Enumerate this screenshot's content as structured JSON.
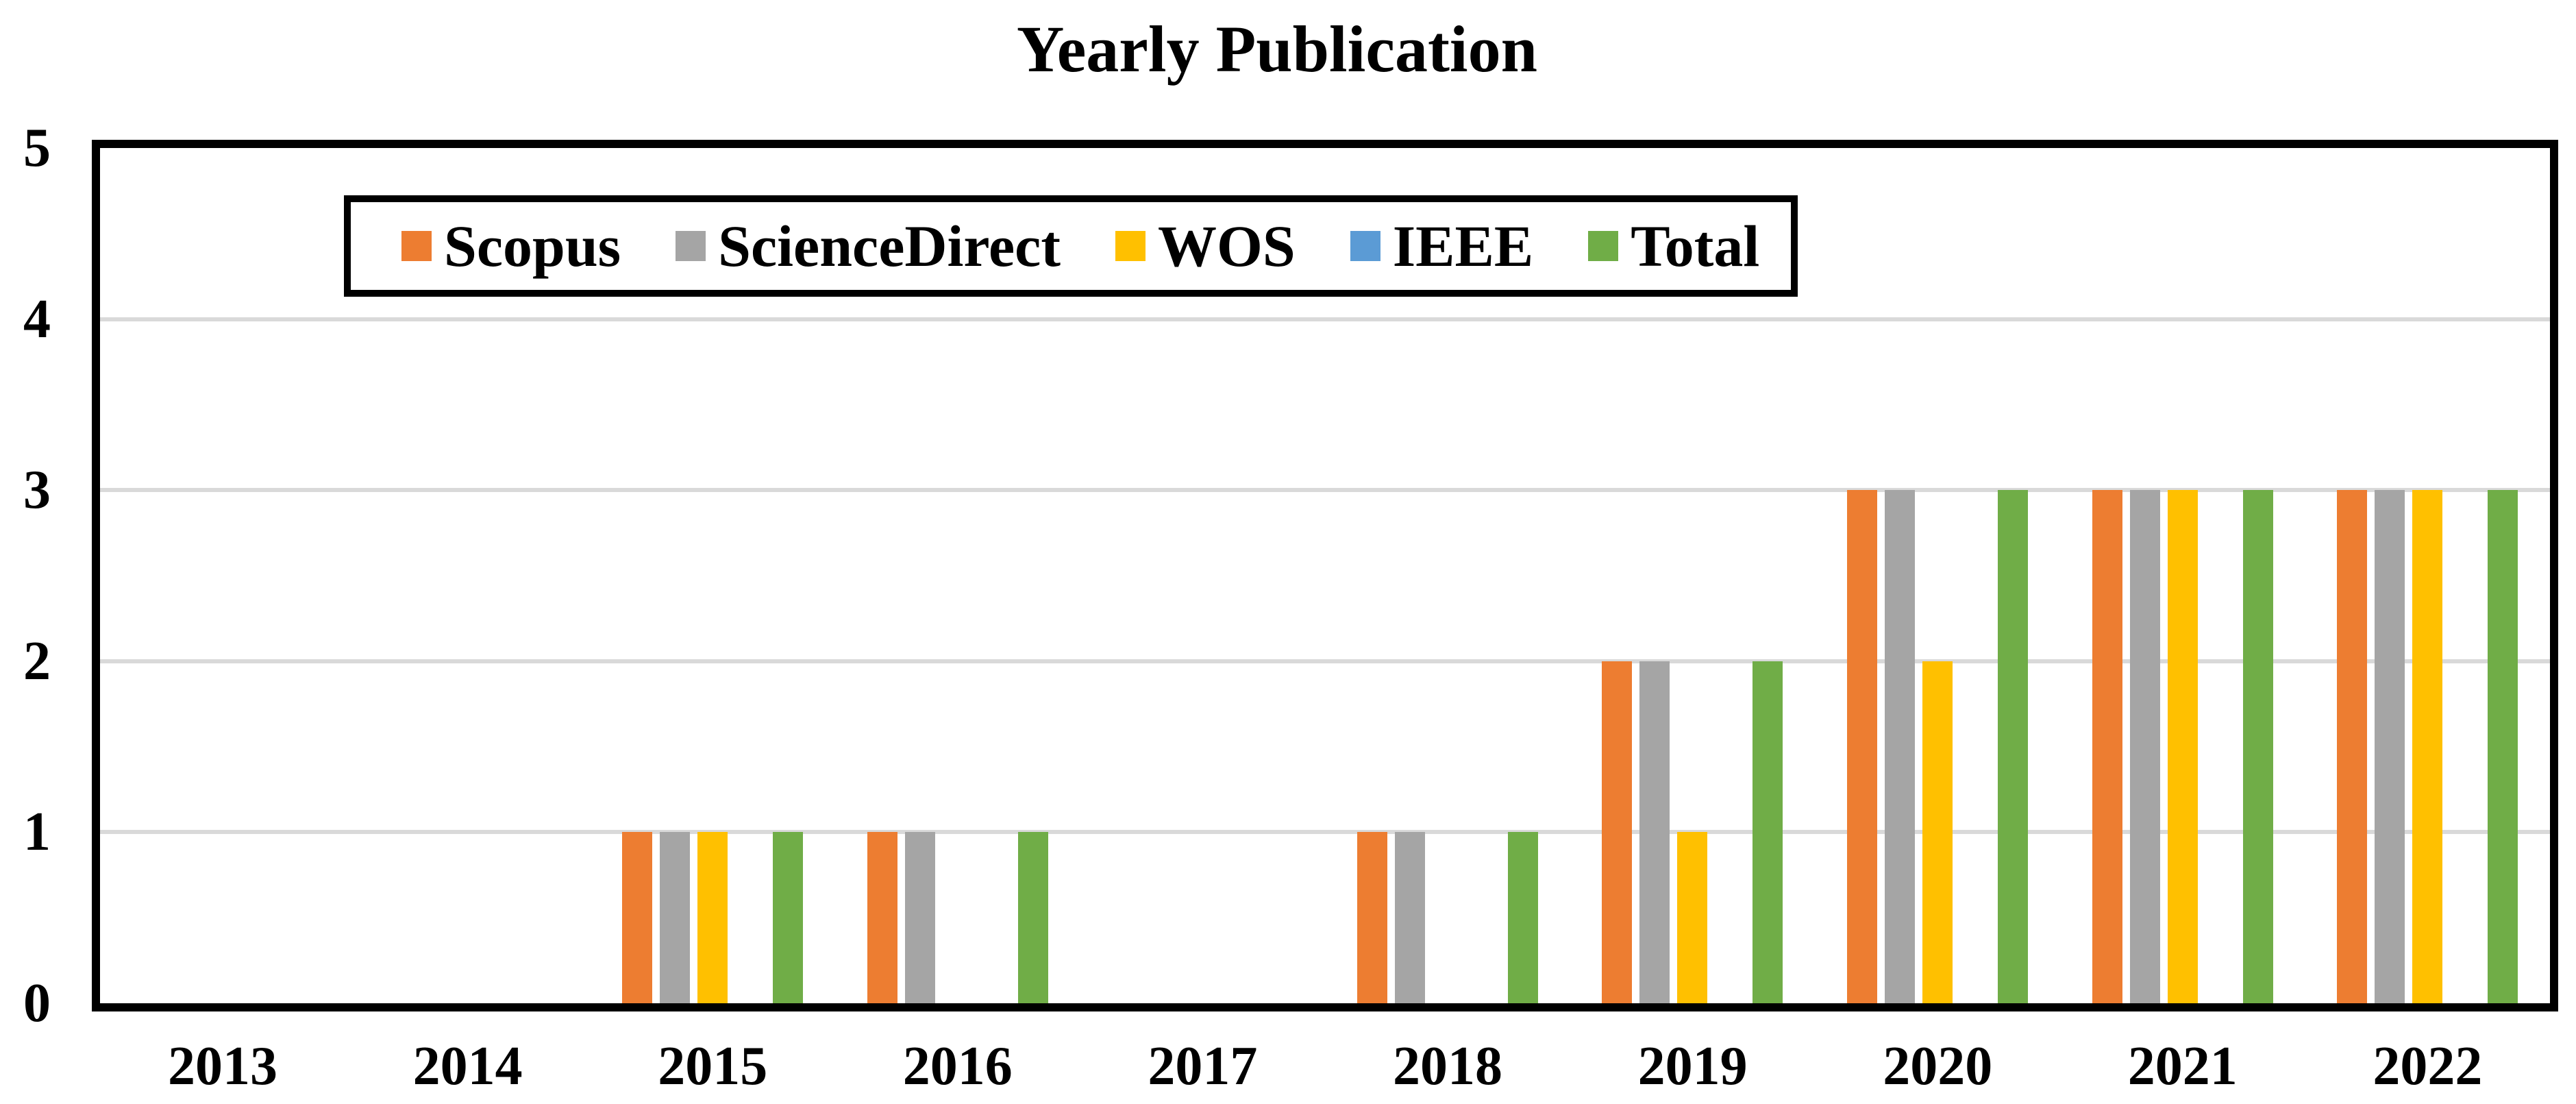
{
  "page": {
    "background": "#ffffff",
    "text_color": "#000000"
  },
  "chart_data": {
    "type": "bar",
    "title": "Yearly Publication",
    "categories": [
      "2013",
      "2014",
      "2015",
      "2016",
      "2017",
      "2018",
      "2019",
      "2020",
      "2021",
      "2022"
    ],
    "series": [
      {
        "name": "Scopus",
        "color": "#ED7D31",
        "values": [
          0,
          0,
          1,
          1,
          0,
          1,
          2,
          3,
          3,
          3
        ]
      },
      {
        "name": "ScienceDirect",
        "color": "#A5A5A5",
        "values": [
          0,
          0,
          1,
          1,
          0,
          1,
          2,
          3,
          3,
          3
        ]
      },
      {
        "name": "WOS",
        "color": "#FFC000",
        "values": [
          0,
          0,
          1,
          0,
          0,
          0,
          1,
          2,
          3,
          3
        ]
      },
      {
        "name": "IEEE",
        "color": "#5B9BD5",
        "values": [
          0,
          0,
          0,
          0,
          0,
          0,
          0,
          0,
          0,
          0
        ]
      },
      {
        "name": "Total",
        "color": "#70AD47",
        "values": [
          0,
          0,
          1,
          1,
          0,
          1,
          2,
          3,
          3,
          3
        ]
      }
    ],
    "xlabel": "",
    "ylabel": "",
    "ylim": [
      0,
      5
    ],
    "yticks": [
      "0",
      "1",
      "2",
      "3",
      "4",
      "5"
    ],
    "grid": true,
    "gridline_color": "#D9D9D9",
    "plot_border_color": "#000000",
    "legend_position": "inside-top-left"
  }
}
